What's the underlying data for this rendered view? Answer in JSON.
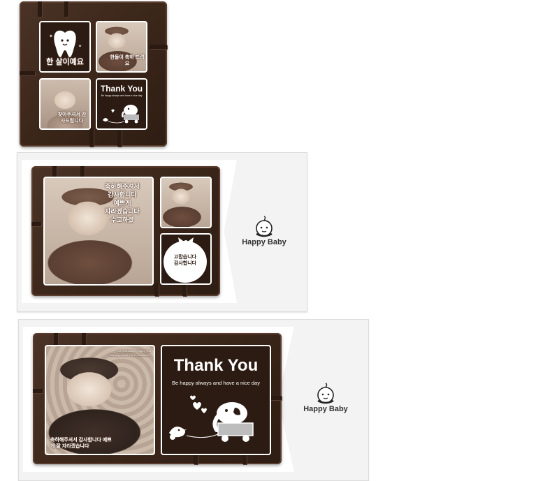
{
  "chocolate_1": {
    "tooth_caption": "한 살이예요",
    "photo1_caption": "한돌이 축하 드려요",
    "photo2_caption": "찾아주셔서 감사드립니다",
    "thank_title": "Thank You",
    "thank_sub": "Be happy always and have a nice day"
  },
  "chocolate_2": {
    "photo_caption_lines": [
      "축하해주셔서",
      "감사합니다",
      "예쁘게",
      "자라겠습니다",
      "수고하셨"
    ],
    "doily_text": "고맙습니다 감사합니다"
  },
  "chocolate_3": {
    "photo_caption_top": "Congratulations, happy first birthday, all the fun of childhood...",
    "photo_caption_bottom": "축하해주셔서 감사합니다 예쁘게 잘 자라겠습니다",
    "thank_title": "Thank You",
    "thank_sub": "Be happy always and have a nice day"
  },
  "box_2": {
    "brand": "Happy Baby"
  },
  "box_3": {
    "brand": "Happy Baby"
  },
  "icons": [
    "tooth-icon",
    "elephant-wagon-icon",
    "bird-icon",
    "heart-icon",
    "baby-face-logo",
    "ribbon-icon"
  ],
  "colors": {
    "chocolate": "#3a2519",
    "tile_border": "#ffffff",
    "box": "#f3f3f3"
  }
}
